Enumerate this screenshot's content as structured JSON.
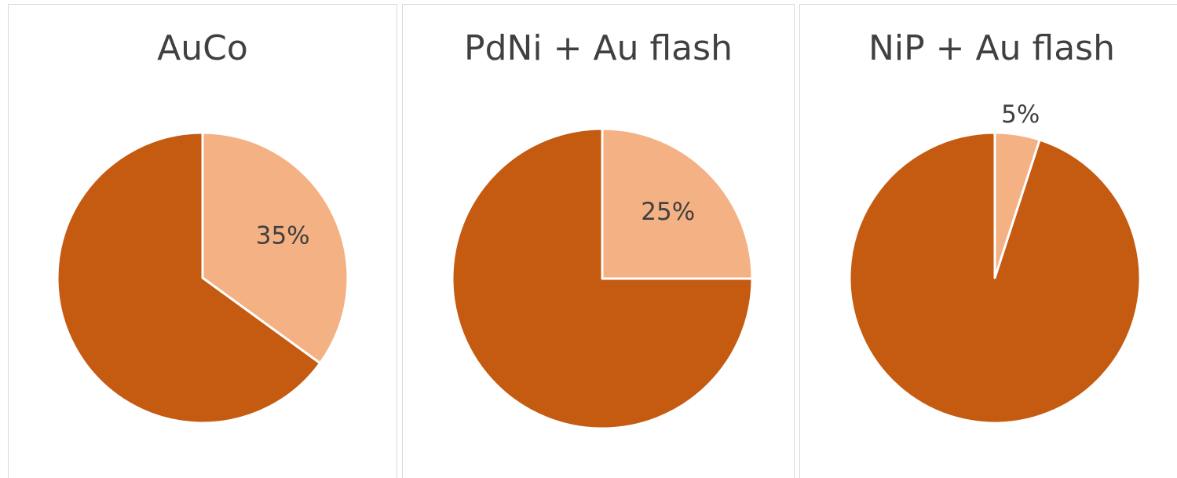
{
  "chart_data": [
    {
      "type": "pie",
      "title": "AuCo",
      "values": [
        35,
        65
      ],
      "value_labels": [
        "35%",
        null
      ],
      "colors": [
        "#f4b183",
        "#c55a11"
      ]
    },
    {
      "type": "pie",
      "title": "PdNi + Au flash",
      "values": [
        25,
        75
      ],
      "value_labels": [
        "25%",
        null
      ],
      "colors": [
        "#f4b183",
        "#c55a11"
      ]
    },
    {
      "type": "pie",
      "title": "NiP + Au flash",
      "values": [
        5,
        95
      ],
      "value_labels": [
        "5%",
        null
      ],
      "colors": [
        "#f4b183",
        "#c55a11"
      ]
    }
  ]
}
